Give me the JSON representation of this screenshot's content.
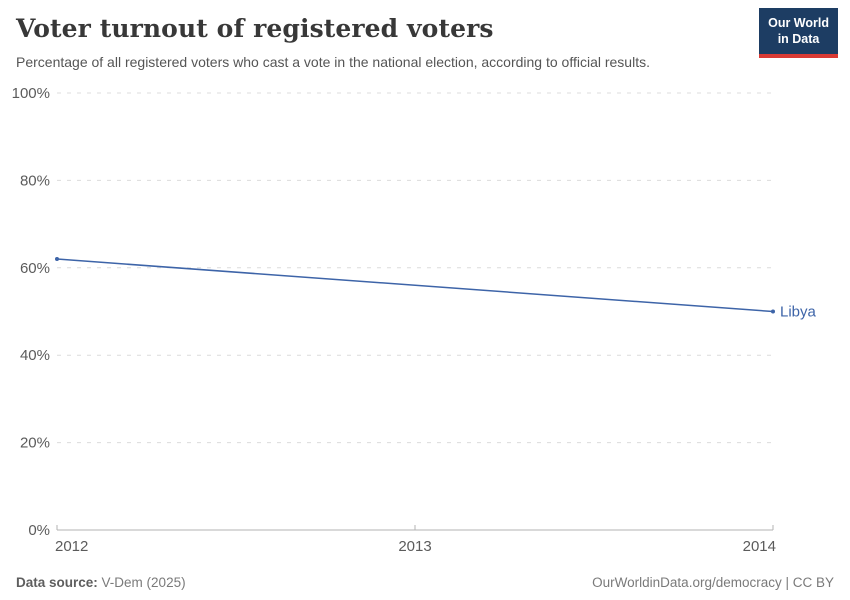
{
  "header": {
    "title": "Voter turnout of registered voters",
    "subtitle": "Percentage of all registered voters who cast a vote in the national election, according to official results.",
    "logo": {
      "line1": "Our World",
      "line2": "in Data"
    }
  },
  "chart_data": {
    "type": "line",
    "title": "Voter turnout of registered voters",
    "subtitle": "Percentage of all registered voters who cast a vote in the national election, according to official results.",
    "series": [
      {
        "name": "Libya",
        "x": [
          2012,
          2014
        ],
        "values": [
          62,
          50
        ],
        "color": "#3d64a8"
      }
    ],
    "x_ticks": [
      2012,
      2013,
      2014
    ],
    "y_ticks": [
      0,
      20,
      40,
      60,
      80,
      100
    ],
    "y_tick_suffix": "%",
    "xlim": [
      2012,
      2014
    ],
    "ylim": [
      0,
      100
    ],
    "xlabel": "",
    "ylabel": "",
    "grid": "horizontal-dashed",
    "legend_position": "line-end-label",
    "colors": {
      "line": "#3d64a8",
      "gridline": "#dcdcdc",
      "axis": "#b3b3b3",
      "tick_label": "#5b5b5b"
    }
  },
  "footer": {
    "source_label": "Data source:",
    "source_value": "V-Dem (2025)",
    "right": "OurWorldinData.org/democracy | CC BY"
  }
}
